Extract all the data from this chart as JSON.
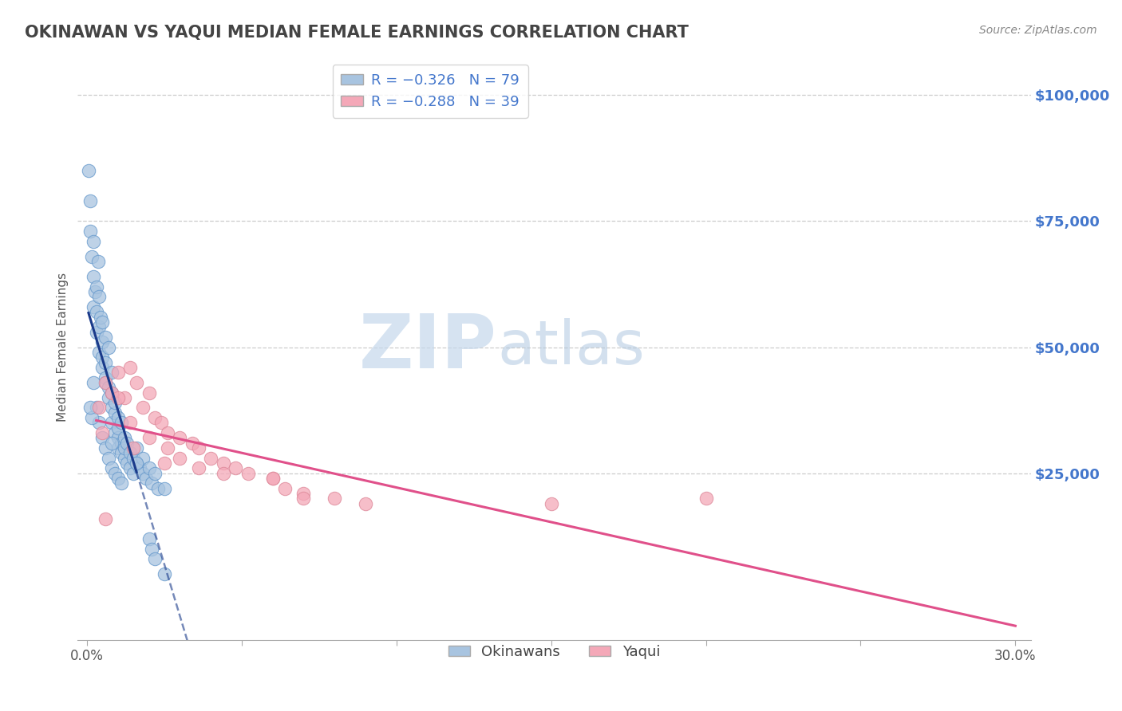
{
  "title": "OKINAWAN VS YAQUI MEDIAN FEMALE EARNINGS CORRELATION CHART",
  "source": "Source: ZipAtlas.com",
  "ylabel": "Median Female Earnings",
  "xlim": [
    -0.003,
    0.305
  ],
  "ylim": [
    -8000,
    108000
  ],
  "ytick_values": [
    25000,
    50000,
    75000,
    100000
  ],
  "legend_line1": "R = -0.326   N = 79",
  "legend_line2": "R = -0.288   N = 39",
  "okinawan_color": "#a8c4e0",
  "okinawan_edge_color": "#6699cc",
  "yaqui_color": "#f4a8b8",
  "yaqui_edge_color": "#dd8899",
  "okinawan_line_color": "#1a3a8a",
  "yaqui_line_color": "#e0508a",
  "watermark_zip": "ZIP",
  "watermark_atlas": "atlas",
  "legend_label1": "Okinawans",
  "legend_label2": "Yaqui",
  "background_color": "#ffffff",
  "grid_color": "#cccccc",
  "okinawan_scatter_x": [
    0.0005,
    0.001,
    0.001,
    0.0015,
    0.002,
    0.002,
    0.002,
    0.0025,
    0.003,
    0.003,
    0.003,
    0.0035,
    0.004,
    0.004,
    0.004,
    0.0045,
    0.005,
    0.005,
    0.005,
    0.005,
    0.006,
    0.006,
    0.006,
    0.006,
    0.007,
    0.007,
    0.007,
    0.008,
    0.008,
    0.008,
    0.008,
    0.009,
    0.009,
    0.009,
    0.01,
    0.01,
    0.01,
    0.01,
    0.011,
    0.011,
    0.011,
    0.012,
    0.012,
    0.012,
    0.013,
    0.013,
    0.014,
    0.014,
    0.015,
    0.015,
    0.016,
    0.016,
    0.017,
    0.018,
    0.018,
    0.019,
    0.02,
    0.021,
    0.022,
    0.023,
    0.002,
    0.003,
    0.004,
    0.005,
    0.006,
    0.007,
    0.008,
    0.009,
    0.01,
    0.011,
    0.0015,
    0.02,
    0.021,
    0.022,
    0.025,
    0.001,
    0.008,
    0.016,
    0.025
  ],
  "okinawan_scatter_y": [
    85000,
    79000,
    73000,
    68000,
    64000,
    71000,
    58000,
    61000,
    62000,
    57000,
    53000,
    67000,
    54000,
    49000,
    60000,
    56000,
    51000,
    46000,
    48000,
    55000,
    47000,
    44000,
    52000,
    43000,
    42000,
    40000,
    50000,
    38000,
    35000,
    41000,
    45000,
    37000,
    33000,
    39000,
    36000,
    32000,
    30000,
    34000,
    31000,
    29000,
    35000,
    28000,
    32000,
    30000,
    27000,
    31000,
    29000,
    26000,
    28000,
    25000,
    27000,
    30000,
    26000,
    25000,
    28000,
    24000,
    26000,
    23000,
    25000,
    22000,
    43000,
    38000,
    35000,
    32000,
    30000,
    28000,
    26000,
    25000,
    24000,
    23000,
    36000,
    12000,
    10000,
    8000,
    5000,
    38000,
    31000,
    27000,
    22000
  ],
  "yaqui_scatter_x": [
    0.004,
    0.006,
    0.008,
    0.01,
    0.012,
    0.014,
    0.016,
    0.018,
    0.02,
    0.022,
    0.024,
    0.026,
    0.03,
    0.034,
    0.036,
    0.04,
    0.044,
    0.048,
    0.052,
    0.06,
    0.064,
    0.07,
    0.08,
    0.09,
    0.006,
    0.01,
    0.014,
    0.02,
    0.026,
    0.03,
    0.036,
    0.044,
    0.06,
    0.07,
    0.15,
    0.005,
    0.015,
    0.025,
    0.2
  ],
  "yaqui_scatter_y": [
    38000,
    43000,
    41000,
    45000,
    40000,
    46000,
    43000,
    38000,
    41000,
    36000,
    35000,
    33000,
    32000,
    31000,
    30000,
    28000,
    27000,
    26000,
    25000,
    24000,
    22000,
    21000,
    20000,
    19000,
    16000,
    40000,
    35000,
    32000,
    30000,
    28000,
    26000,
    25000,
    24000,
    20000,
    19000,
    33000,
    30000,
    27000,
    20000
  ]
}
